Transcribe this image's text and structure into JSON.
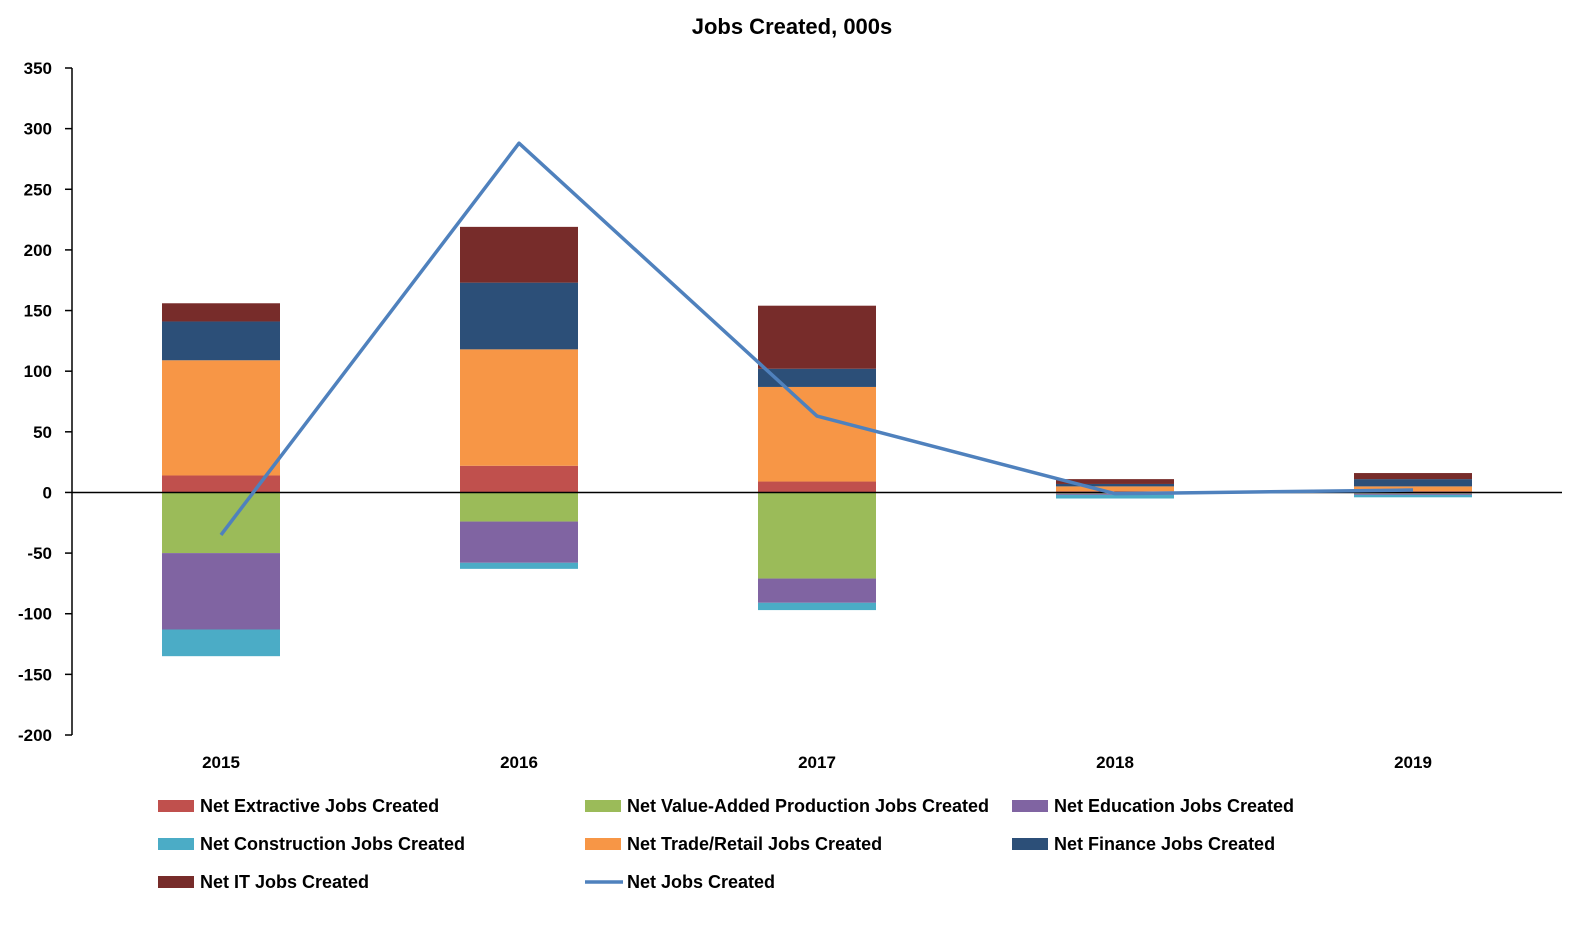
{
  "chart_data": {
    "type": "bar",
    "stacked": true,
    "title": "Jobs Created, 000s",
    "xlabel": "",
    "ylabel": "",
    "categories": [
      "2015",
      "2016",
      "2017",
      "2018",
      "2019"
    ],
    "ylim": [
      -200,
      350
    ],
    "yticks": [
      350,
      300,
      250,
      200,
      150,
      100,
      50,
      0,
      -50,
      -100,
      -150,
      -200
    ],
    "grid": false,
    "legend_position": "bottom",
    "series": [
      {
        "name": "Net Extractive Jobs Created",
        "color": "#C0504D",
        "values": [
          14,
          22,
          9,
          1,
          1
        ]
      },
      {
        "name": "Net Value-Added Production Jobs Created",
        "color": "#9BBB59",
        "values": [
          -50,
          -24,
          -71,
          -1,
          -1
        ]
      },
      {
        "name": "Net Education Jobs Created",
        "color": "#8064A2",
        "values": [
          -63,
          -34,
          -20,
          -1,
          -1
        ]
      },
      {
        "name": "Net Construction Jobs Created",
        "color": "#4BACC6",
        "values": [
          -22,
          -5,
          -6,
          -3,
          -2
        ]
      },
      {
        "name": "Net Trade/Retail Jobs Created",
        "color": "#F79646",
        "values": [
          95,
          96,
          78,
          4,
          4
        ]
      },
      {
        "name": "Net Finance Jobs Created",
        "color": "#2C4F78",
        "values": [
          32,
          55,
          15,
          2,
          6
        ]
      },
      {
        "name": "Net IT Jobs Created",
        "color": "#772C2A",
        "values": [
          15,
          46,
          52,
          4,
          5
        ]
      }
    ],
    "line_series": {
      "name": "Net Jobs Created",
      "color": "#4F81BD",
      "values": [
        -35,
        288,
        63,
        -1,
        2
      ]
    }
  }
}
